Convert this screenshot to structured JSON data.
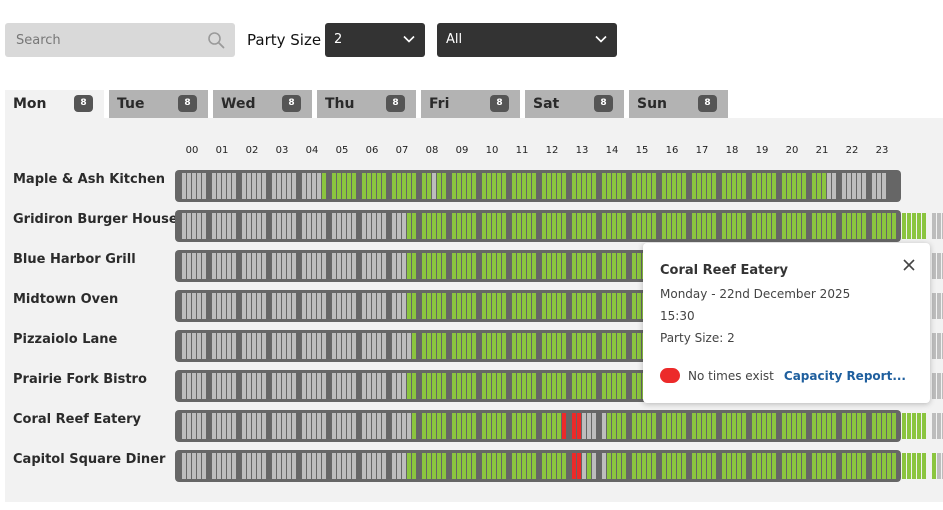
{
  "search": {
    "placeholder": "Search",
    "value": ""
  },
  "party_size": {
    "label": "Party Size",
    "selected": "2"
  },
  "filter": {
    "selected": "All"
  },
  "tabs": [
    {
      "label": "Mon",
      "count": "8",
      "active": true
    },
    {
      "label": "Tue",
      "count": "8",
      "active": false
    },
    {
      "label": "Wed",
      "count": "8",
      "active": false
    },
    {
      "label": "Thu",
      "count": "8",
      "active": false
    },
    {
      "label": "Fri",
      "count": "8",
      "active": false
    },
    {
      "label": "Sat",
      "count": "8",
      "active": false
    },
    {
      "label": "Sun",
      "count": "8",
      "active": false
    }
  ],
  "hours": [
    "00",
    "01",
    "02",
    "03",
    "04",
    "05",
    "06",
    "07",
    "08",
    "09",
    "10",
    "11",
    "12",
    "13",
    "14",
    "15",
    "16",
    "17",
    "18",
    "19",
    "20",
    "21",
    "22",
    "23"
  ],
  "colors": {
    "available": "#8bc53f",
    "unavailable": "#bdbdbd",
    "no_times": "#ec2a2a"
  },
  "restaurants": [
    {
      "name": "Maple & Ash Kitchen",
      "slots": "gggggggggggggggggggggggggggggvvvvvvvvvvvvvvvvvvvvvvgvvvvvvvvvvvvvvvvvvvvvvvvvvvvvvvvvvvvvvvvvvvvvvvvvvvvvvvvvvvvvvvvvvvvvvvvvvvvvvgggggggggggg"
    },
    {
      "name": "Gridiron Burger House",
      "slots": "ggggggggggggggggggggggggggggggggggggggggggggggvvvvvvvvvvvvvvvvvvvvvvvvvvvvvvvvvvvvvvvvvvvvvvvvvvvvvvvvvvvvvvvvvvvvvvvvvvvvvvvvvvvvvvvvvvvvvvvvvvvvvvvvvgggggggg"
    },
    {
      "name": "Blue Harbor Grill",
      "slots": "ggggggggggggggggggggggggggggggggggggggggggggggvvvvvvvvvvvvvvvvvvvvvvvvvvvvvvvvvvvvvvvvvvvvvvvvvvvvvvvvvvvvvvvvvvvvvvvvvvvvvvvvvvvvvvvvvvvvvvvvvvvvvvvvvgggggggg"
    },
    {
      "name": "Midtown Oven",
      "slots": "ggggggggggggggggggggggggggggggggggggggggggggggvvvvvvvvvvvvvvvvvvvvvvvvvvvvvvvvvvvvvvvvvvvvvvvvvvvvvvvvvvvvvvvvvvvvvvvvvvvvvvvvvvvvvvvvvvvvvvvvvvvvvvvvvgggggggg"
    },
    {
      "name": "Pizzaiolo Lane",
      "slots": "gggggggggggggggggggggggggggggggggggggggggggggggvvvvvvvvvvvvvvvvvvvvvvvvvvvvvvvvvvvvvvvvvvvvvvvvvvvvvvvvvvvvvvvvvvvvvvvvvvvvvvvvvvvvvvvvvvvvvvvvvvvvvvvvgggggggg"
    },
    {
      "name": "Prairie Fork Bistro",
      "slots": "ggggggggggggggggggggggggggggggggggggggggggggggvvvvvvvvvvvvvvvvvvvvvvvvvvvvvvvvvvvvvvvvvvvvvvvvvvvvvvvvvvvvvvvvvvvvvvvvvvvvvvvvvvvvvvvvvvvvvvvvvvvvvvvvvgggggggg"
    },
    {
      "name": "Coral Reef Eatery",
      "slots": "gggggggggggggggggggggggggggggggggggggggggggggggvvvvvvvvvvvvvvvvvvvvvvvvvvvvvvrrrrgggggvvvvvvvvvvvvvvvvvvvvvvvvvvvvvvvvvvvvvvvvvvvvvvvvvvvvvvvvvvvvvvvvvggggg"
    },
    {
      "name": "Capitol Square Diner",
      "slots": "ggggggggggggggggggggggggggggggggggggggggggggggvvvvvvvvvvvvvvvvvvvvvvvvvvvvvvvvrrrgvgrgvvvvvvvvvvvvvvvvvvvvvvvvvvvvvvvvvvvvvvvvvvvvvvvvvvvvvvvvvvvvvvvvvvgggggg"
    }
  ],
  "tooltip": {
    "title": "Coral Reef Eatery",
    "date": "Monday - 22nd December 2025",
    "time": "15:30",
    "party": "Party Size: 2",
    "legend": "No times exist",
    "link": "Capacity Report..."
  }
}
